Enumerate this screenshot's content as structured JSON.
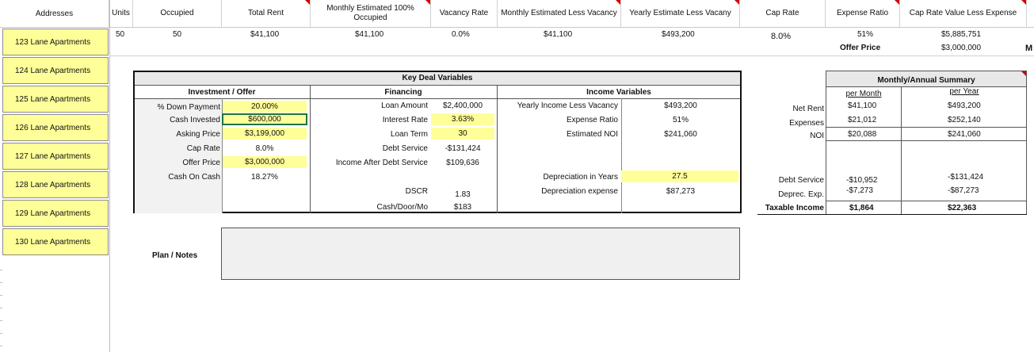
{
  "header": {
    "addresses": "Addresses",
    "units": "Units",
    "occupied": "Occupied",
    "total_rent": "Total Rent",
    "monthly_est_100": "Monthly Estimated 100% Occupied",
    "vacancy_rate": "Vacancy Rate",
    "monthly_est_less": "Monthly Estimated Less Vacancy",
    "yearly_est_less": "Yearly Estimate Less Vacany",
    "cap_rate": "Cap Rate",
    "expense_ratio": "Expense Ratio",
    "cap_rate_value": "Cap Rate Value Less Expense",
    "overflow_col": "M"
  },
  "addresses": [
    "123 Lane Apartments",
    "124 Lane Apartments",
    "125 Lane Apartments",
    "126 Lane Apartments",
    "127 Lane Apartments",
    "128 Lane Apartments",
    "129 Lane Apartments",
    "130 Lane Apartments"
  ],
  "summary_row": {
    "units": "50",
    "occupied": "50",
    "total_rent": "$41,100",
    "monthly_est_100": "$41,100",
    "vacancy_rate": "0.0%",
    "monthly_est_less": "$41,100",
    "yearly_est_less": "$493,200",
    "cap_rate": "8.0%",
    "expense_ratio": "51%",
    "cap_rate_value": "$5,885,751",
    "offer_price_label": "Offer Price",
    "offer_price_value": "$3,000,000"
  },
  "key_deal": {
    "title": "Key Deal Variables",
    "investment_title": "Investment / Offer",
    "financing_title": "Financing",
    "income_title": "Income Variables",
    "investment": [
      {
        "label": "% Down Payment",
        "value": "20.00%"
      },
      {
        "label": "Cash Invested",
        "value": "$600,000"
      },
      {
        "label": "Asking Price",
        "value": "$3,199,000"
      },
      {
        "label": "Cap Rate",
        "value": "8.0%"
      },
      {
        "label": "Offer Price",
        "value": "$3,000,000"
      },
      {
        "label": "Cash On Cash",
        "value": "18.27%"
      }
    ],
    "financing": [
      {
        "label": "Loan Amount",
        "value": "$2,400,000"
      },
      {
        "label": "Interest Rate",
        "value": "3.63%"
      },
      {
        "label": "Loan Term",
        "value": "30"
      },
      {
        "label": "Debt Service",
        "value": "-$131,424"
      },
      {
        "label": "Income After Debt Service",
        "value": "$109,636"
      },
      {
        "label": "DSCR",
        "value": "1.83"
      },
      {
        "label": "Cash/Door/Mo",
        "value": "$183"
      }
    ],
    "income": [
      {
        "label": "Yearly Income Less Vacancy",
        "value": "$493,200"
      },
      {
        "label": "Expense Ratio",
        "value": "51%"
      },
      {
        "label": "Estimated NOI",
        "value": "$241,060"
      },
      {
        "label": "Depreciation in Years",
        "value": "27.5"
      },
      {
        "label": "Depreciation expense",
        "value": "$87,273"
      }
    ]
  },
  "notes": {
    "label": "Plan / Notes",
    "value": ""
  },
  "summary": {
    "title": "Monthly/Annual Summary",
    "per_month": "per Month",
    "per_year": "per Year",
    "rows": [
      {
        "label": "Net Rent",
        "month": "$41,100",
        "year": "$493,200"
      },
      {
        "label": "Expenses",
        "month": "$21,012",
        "year": "$252,140"
      },
      {
        "label": "NOI",
        "month": "$20,088",
        "year": "$241,060"
      },
      {
        "label": "Debt Service",
        "month": "-$10,952",
        "year": "-$131,424"
      },
      {
        "label": "Deprec. Exp.",
        "month": "-$7,273",
        "year": "-$87,273"
      },
      {
        "label": "Taxable Income",
        "month": "$1,864",
        "year": "$22,363"
      }
    ]
  },
  "colors": {
    "highlight": "#ffff99",
    "comment_marker": "#d40000",
    "panel_gray": "#f0f0f0"
  }
}
